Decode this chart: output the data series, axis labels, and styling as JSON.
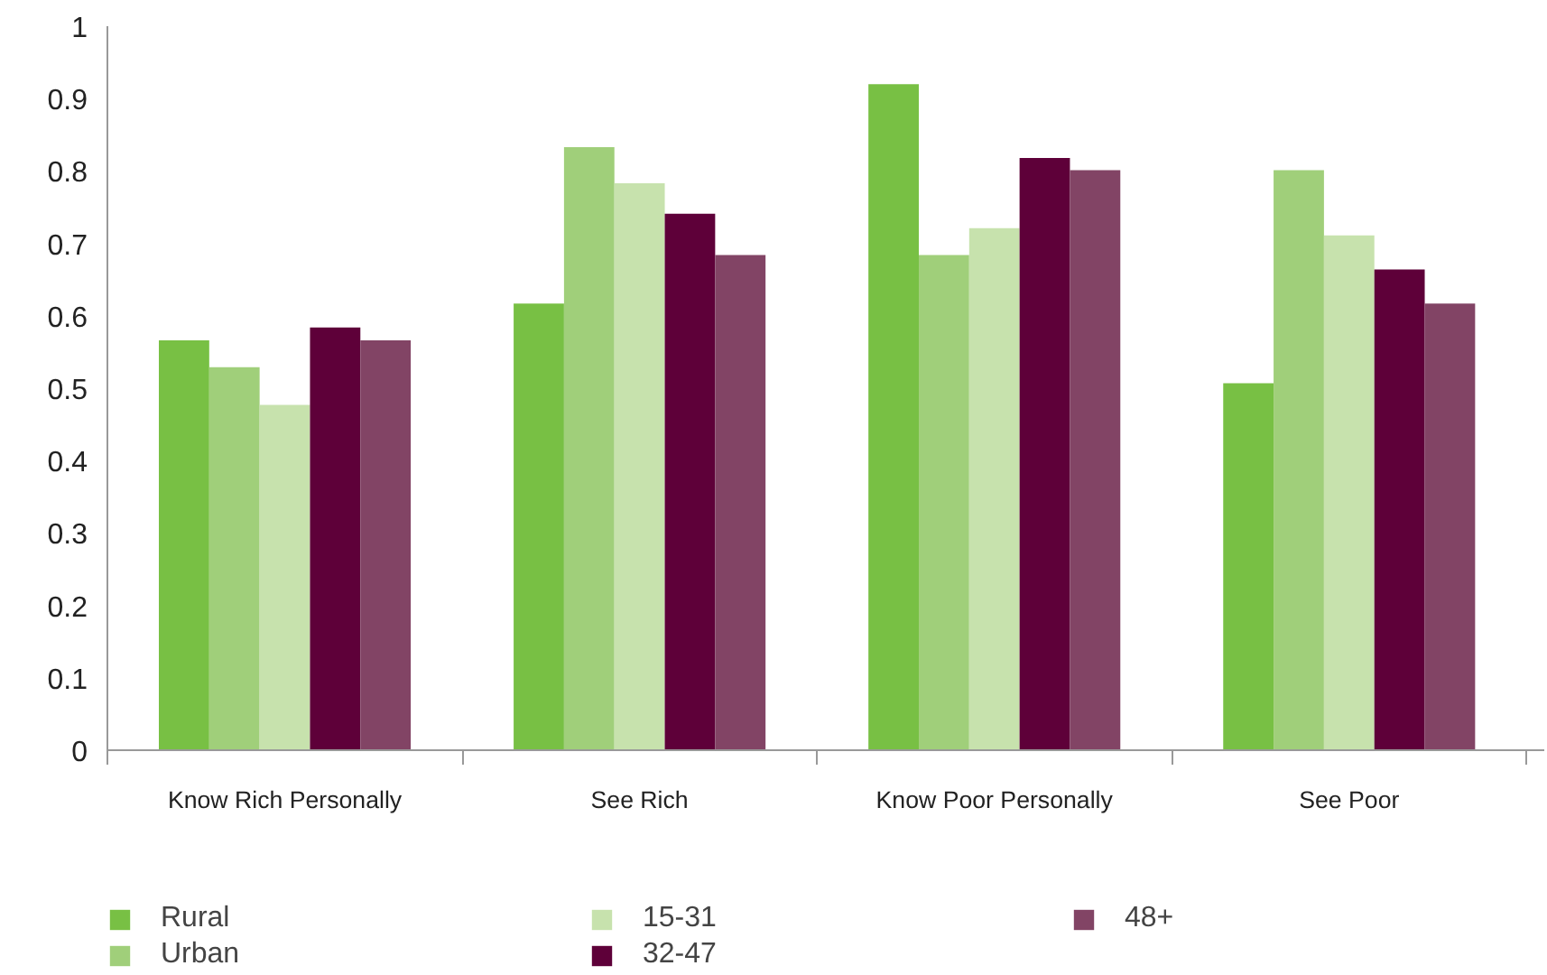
{
  "chart_data": {
    "type": "bar",
    "categories": [
      "Know Rich Personally",
      "See Rich",
      "Know Poor Personally",
      "See Poor"
    ],
    "series": [
      {
        "name": "Rural",
        "color": "#78c044",
        "values": [
          0.566,
          0.617,
          0.92,
          0.507
        ]
      },
      {
        "name": "Urban",
        "color": "#a0cf7a",
        "values": [
          0.529,
          0.833,
          0.684,
          0.801
        ]
      },
      {
        "name": "15-31",
        "color": "#c7e2ad",
        "values": [
          0.477,
          0.783,
          0.721,
          0.711
        ]
      },
      {
        "name": "32-47",
        "color": "#5e0039",
        "values": [
          0.584,
          0.741,
          0.818,
          0.664
        ]
      },
      {
        "name": "48+",
        "color": "#824465",
        "values": [
          0.566,
          0.684,
          0.801,
          0.617
        ]
      }
    ],
    "ylim": [
      0,
      1
    ],
    "yticks": [
      0,
      0.1,
      0.2,
      0.3,
      0.4,
      0.5,
      0.6,
      0.7,
      0.8,
      0.9,
      1
    ],
    "grid": false,
    "legend": "bottom"
  }
}
